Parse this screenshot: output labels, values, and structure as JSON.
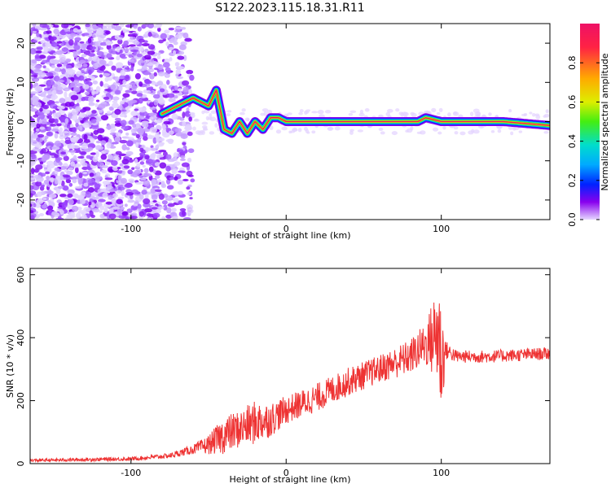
{
  "title": "S122.2023.115.18.31.R11",
  "colors": {
    "snr_line": "#ee3333",
    "spectrogram_low": "#8800ee",
    "spectrogram_high": "#ee1166"
  },
  "chart_data": [
    {
      "type": "heatmap",
      "xlabel": "Height of straight line (km)",
      "ylabel": "Frequency (Hz)",
      "xlim": [
        -165,
        170
      ],
      "ylim": [
        -25,
        25
      ],
      "xticks": [
        -100,
        0,
        100
      ],
      "yticks": [
        -20,
        -10,
        0,
        10,
        20
      ],
      "colorbar": {
        "label": "Normalized spectral amplitude",
        "range": [
          0.0,
          1.0
        ],
        "ticks": [
          0.0,
          0.2,
          0.4,
          0.6,
          0.8
        ],
        "colormap": [
          "#ee1166",
          "#ff4422",
          "#ffcc00",
          "#44ee11",
          "#00ddee",
          "#0022ff",
          "#8800ee",
          "#e6d8ff"
        ]
      },
      "ridge": {
        "x": [
          -80,
          -70,
          -60,
          -50,
          -45,
          -40,
          -35,
          -30,
          -25,
          -20,
          -15,
          -10,
          -5,
          0,
          20,
          60,
          85,
          90,
          100,
          140,
          170
        ],
        "y": [
          2,
          4,
          6,
          4,
          8,
          -2,
          -3,
          0,
          -3,
          0,
          -2,
          1,
          1,
          0,
          0,
          0,
          0,
          1,
          0,
          0,
          -1
        ]
      }
    },
    {
      "type": "line",
      "xlabel": "Height of straight line (km)",
      "ylabel": "SNR (10 * v/v)",
      "xlim": [
        -165,
        170
      ],
      "ylim": [
        0,
        620
      ],
      "xticks": [
        -100,
        0,
        100
      ],
      "yticks": [
        0,
        200,
        400,
        600
      ],
      "envelope": {
        "x": [
          -165,
          -100,
          -75,
          -60,
          -50,
          -40,
          -30,
          -20,
          -10,
          0,
          20,
          40,
          60,
          80,
          90,
          95,
          98,
          100,
          103,
          110,
          130,
          150,
          170
        ],
        "y": [
          10,
          15,
          25,
          45,
          60,
          90,
          110,
          130,
          140,
          170,
          210,
          260,
          300,
          340,
          380,
          400,
          420,
          330,
          360,
          340,
          340,
          345,
          350
        ],
        "noise": [
          5,
          6,
          8,
          15,
          30,
          60,
          60,
          70,
          55,
          45,
          45,
          45,
          45,
          55,
          70,
          130,
          190,
          200,
          30,
          20,
          20,
          20,
          20
        ]
      }
    }
  ]
}
